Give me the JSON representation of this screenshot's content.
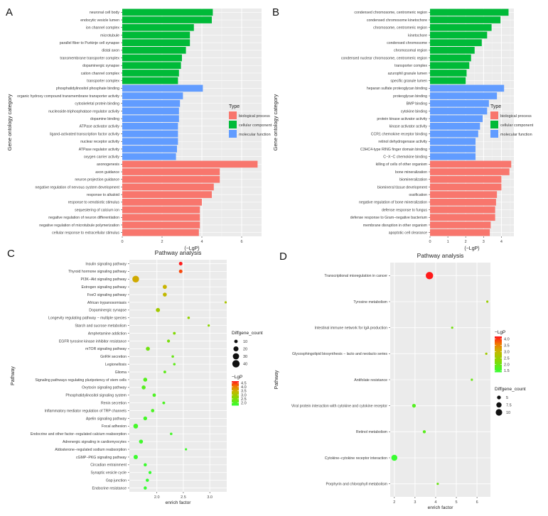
{
  "chart_data": [
    {
      "panel": "A",
      "type": "bar",
      "orientation": "horizontal",
      "xlabel": "(−LgP)",
      "ylabel": "Gene ontology category",
      "xlim": [
        0,
        7
      ],
      "xticks": [
        0,
        2,
        4,
        6
      ],
      "legend": {
        "title": "Type",
        "position": "right",
        "entries": [
          "biological process",
          "cellular component",
          "molecular function"
        ]
      },
      "colors": {
        "biological process": "#f8766d",
        "cellular component": "#00ba38",
        "molecular function": "#619cff"
      },
      "bars": [
        {
          "label": "neuronal cell body",
          "value": 4.55,
          "type": "cellular component"
        },
        {
          "label": "endocytic vesicle lumen",
          "value": 4.5,
          "type": "cellular component"
        },
        {
          "label": "ion channel complex",
          "value": 3.6,
          "type": "cellular component"
        },
        {
          "label": "microtubule",
          "value": 3.4,
          "type": "cellular component"
        },
        {
          "label": "parallel fiber to Purkinje cell synapse",
          "value": 3.4,
          "type": "cellular component"
        },
        {
          "label": "distal axon",
          "value": 3.2,
          "type": "cellular component"
        },
        {
          "label": "transmembrane transporter complex",
          "value": 3.0,
          "type": "cellular component"
        },
        {
          "label": "dopaminergic synapse",
          "value": 2.95,
          "type": "cellular component"
        },
        {
          "label": "cation channel complex",
          "value": 2.85,
          "type": "cellular component"
        },
        {
          "label": "transporter complex",
          "value": 2.8,
          "type": "cellular component"
        },
        {
          "label": "phosphatidylinositol phosphate binding",
          "value": 4.05,
          "type": "molecular function"
        },
        {
          "label": "organic hydroxy compound transmembrane transporter activity",
          "value": 3.05,
          "type": "molecular function"
        },
        {
          "label": "cytoskeletal protein binding",
          "value": 2.9,
          "type": "molecular function"
        },
        {
          "label": "nucleoside-triphosphatase regulator activity",
          "value": 2.85,
          "type": "molecular function"
        },
        {
          "label": "dopamine binding",
          "value": 2.85,
          "type": "molecular function"
        },
        {
          "label": "ATPase activator activity",
          "value": 2.8,
          "type": "molecular function"
        },
        {
          "label": "ligand-activated transcription factor activity",
          "value": 2.8,
          "type": "molecular function"
        },
        {
          "label": "nuclear receptor activity",
          "value": 2.8,
          "type": "molecular function"
        },
        {
          "label": "ATPase regulator activity",
          "value": 2.75,
          "type": "molecular function"
        },
        {
          "label": "oxygen carrier activity",
          "value": 2.7,
          "type": "molecular function"
        },
        {
          "label": "axonogenesis",
          "value": 6.8,
          "type": "biological process"
        },
        {
          "label": "axon guidance",
          "value": 4.9,
          "type": "biological process"
        },
        {
          "label": "neuron projection guidance",
          "value": 4.9,
          "type": "biological process"
        },
        {
          "label": "negative regulation of nervous system development",
          "value": 4.6,
          "type": "biological process"
        },
        {
          "label": "response to alkaloid",
          "value": 4.5,
          "type": "biological process"
        },
        {
          "label": "response to xenobiotic stimulus",
          "value": 4.0,
          "type": "biological process"
        },
        {
          "label": "sequestering of calcium ion",
          "value": 3.9,
          "type": "biological process"
        },
        {
          "label": "negative regulation of neuron differentiation",
          "value": 3.9,
          "type": "biological process"
        },
        {
          "label": "negative regulation of microtubule polymerization",
          "value": 3.9,
          "type": "biological process"
        },
        {
          "label": "cellular response to extracellular stimulus",
          "value": 3.85,
          "type": "biological process"
        }
      ]
    },
    {
      "panel": "B",
      "type": "bar",
      "orientation": "horizontal",
      "xlabel": "(−LgP)",
      "ylabel": "Gene ontology category",
      "xlim": [
        0,
        4.7
      ],
      "xticks": [
        0,
        1,
        2,
        3,
        4
      ],
      "legend": {
        "title": "Type",
        "position": "right",
        "entries": [
          "biological process",
          "cellular component",
          "molecular function"
        ]
      },
      "colors": {
        "biological process": "#f8766d",
        "cellular component": "#00ba38",
        "molecular function": "#619cff"
      },
      "bars": [
        {
          "label": "condensed chromosome, centromeric region",
          "value": 4.4,
          "type": "cellular component"
        },
        {
          "label": "condensed chromosome kinetochore",
          "value": 3.95,
          "type": "cellular component"
        },
        {
          "label": "chromosome, centromeric region",
          "value": 3.45,
          "type": "cellular component"
        },
        {
          "label": "kinetochore",
          "value": 3.2,
          "type": "cellular component"
        },
        {
          "label": "condensed chromosome",
          "value": 2.9,
          "type": "cellular component"
        },
        {
          "label": "chromosomal region",
          "value": 2.5,
          "type": "cellular component"
        },
        {
          "label": "condensed nuclear chromosome, centromeric region",
          "value": 2.3,
          "type": "cellular component"
        },
        {
          "label": "transporter complex",
          "value": 2.2,
          "type": "cellular component"
        },
        {
          "label": "azurophil granule lumen",
          "value": 2.05,
          "type": "cellular component"
        },
        {
          "label": "specific granule lumen",
          "value": 2.0,
          "type": "cellular component"
        },
        {
          "label": "heparan sulfate proteoglycan binding",
          "value": 4.15,
          "type": "molecular function"
        },
        {
          "label": "proteoglycan binding",
          "value": 3.75,
          "type": "molecular function"
        },
        {
          "label": "BMP binding",
          "value": 3.3,
          "type": "molecular function"
        },
        {
          "label": "cytokine binding",
          "value": 3.2,
          "type": "molecular function"
        },
        {
          "label": "protein kinase activator activity",
          "value": 2.95,
          "type": "molecular function"
        },
        {
          "label": "kinase activator activity",
          "value": 2.8,
          "type": "molecular function"
        },
        {
          "label": "CCR1 chemokine receptor binding",
          "value": 2.7,
          "type": "molecular function"
        },
        {
          "label": "retinol dehydrogenase activity",
          "value": 2.55,
          "type": "molecular function"
        },
        {
          "label": "C3HC4-type RING finger domain binding",
          "value": 2.55,
          "type": "molecular function"
        },
        {
          "label": "C−X−C chemokine binding",
          "value": 2.55,
          "type": "molecular function"
        },
        {
          "label": "killing of cells of other organism",
          "value": 4.55,
          "type": "biological process"
        },
        {
          "label": "bone mineralization",
          "value": 4.45,
          "type": "biological process"
        },
        {
          "label": "biomineralization",
          "value": 4.0,
          "type": "biological process"
        },
        {
          "label": "biomineral tissue development",
          "value": 4.0,
          "type": "biological process"
        },
        {
          "label": "ossification",
          "value": 3.75,
          "type": "biological process"
        },
        {
          "label": "negative regulation of bone mineralization",
          "value": 3.7,
          "type": "biological process"
        },
        {
          "label": "defense response to fungus",
          "value": 3.65,
          "type": "biological process"
        },
        {
          "label": "defense response to Gram−negative bacterium",
          "value": 3.65,
          "type": "biological process"
        },
        {
          "label": "membrane disruption in other organism",
          "value": 3.4,
          "type": "biological process"
        },
        {
          "label": "apoptotic cell clearance",
          "value": 3.35,
          "type": "biological process"
        }
      ]
    },
    {
      "panel": "C",
      "type": "scatter",
      "title": "Pathway analysis",
      "xlabel": "enrich factor",
      "ylabel": "Pathway",
      "xlim": [
        1.48,
        3.32
      ],
      "xticks": [
        2.0,
        2.5,
        3.0
      ],
      "xticklabels": [
        "2.0",
        "2.5",
        "3.0"
      ],
      "size_legend": {
        "title": "Diffgene_count",
        "values": [
          10,
          20,
          30,
          40
        ],
        "range": [
          5,
          45
        ]
      },
      "color_legend": {
        "title": "−LgP",
        "ticks": [
          2.0,
          2.5,
          3.0,
          3.5,
          4.0,
          4.5
        ],
        "range": [
          1.7,
          4.7
        ]
      },
      "points": [
        {
          "pathway": "Insulin signaling pathway",
          "x": 2.45,
          "count": 11,
          "lgp": 4.7
        },
        {
          "pathway": "Thyroid hormone signaling pathway",
          "x": 2.45,
          "count": 11,
          "lgp": 4.4
        },
        {
          "pathway": "PI3K−Akt signaling pathway",
          "x": 1.6,
          "count": 34,
          "lgp": 3.6
        },
        {
          "pathway": "Estrogen signaling pathway",
          "x": 2.15,
          "count": 14,
          "lgp": 3.5
        },
        {
          "pathway": "FoxO signaling pathway",
          "x": 2.15,
          "count": 13,
          "lgp": 3.4
        },
        {
          "pathway": "African trypanosomiasis",
          "x": 3.3,
          "count": 5,
          "lgp": 3.1
        },
        {
          "pathway": "Dopaminergic synapse",
          "x": 2.02,
          "count": 14,
          "lgp": 3.0
        },
        {
          "pathway": "Longevity regulating pathway − multiple species",
          "x": 2.6,
          "count": 6,
          "lgp": 2.8
        },
        {
          "pathway": "Starch and sucrose metabolism",
          "x": 2.98,
          "count": 5,
          "lgp": 2.7
        },
        {
          "pathway": "Amphetamine addiction",
          "x": 2.33,
          "count": 7,
          "lgp": 2.6
        },
        {
          "pathway": "EGFR tyrosine kinase inhibitor resistance",
          "x": 2.22,
          "count": 8,
          "lgp": 2.5
        },
        {
          "pathway": "mTOR signaling pathway",
          "x": 1.83,
          "count": 13,
          "lgp": 2.4
        },
        {
          "pathway": "GnRH secretion",
          "x": 2.3,
          "count": 6,
          "lgp": 2.3
        },
        {
          "pathway": "Legionellosis",
          "x": 2.33,
          "count": 6,
          "lgp": 2.2
        },
        {
          "pathway": "Glioma",
          "x": 2.15,
          "count": 7,
          "lgp": 2.2
        },
        {
          "pathway": "Signaling pathways regulating pluripotency of stem cells",
          "x": 1.78,
          "count": 13,
          "lgp": 2.1
        },
        {
          "pathway": "Oxytocin signaling pathway",
          "x": 1.75,
          "count": 13,
          "lgp": 2.1
        },
        {
          "pathway": "Phosphatidylinositol signaling system",
          "x": 1.95,
          "count": 10,
          "lgp": 2.0
        },
        {
          "pathway": "Renin secretion",
          "x": 2.13,
          "count": 7,
          "lgp": 2.0
        },
        {
          "pathway": "Inflammatory mediator regulation of TRP channels",
          "x": 1.92,
          "count": 10,
          "lgp": 2.0
        },
        {
          "pathway": "Apelin signaling pathway",
          "x": 1.78,
          "count": 12,
          "lgp": 1.9
        },
        {
          "pathway": "Focal adhesion",
          "x": 1.6,
          "count": 18,
          "lgp": 1.9
        },
        {
          "pathway": "Endocrine and other factor−regulated calcium reabsorption",
          "x": 2.27,
          "count": 6,
          "lgp": 1.9
        },
        {
          "pathway": "Adrenergic signaling in cardiomyocytes",
          "x": 1.7,
          "count": 13,
          "lgp": 1.85
        },
        {
          "pathway": "Aldosterone−regulated sodium reabsorption",
          "x": 2.55,
          "count": 5,
          "lgp": 1.85
        },
        {
          "pathway": "cGMP−PKG signaling pathway",
          "x": 1.6,
          "count": 15,
          "lgp": 1.8
        },
        {
          "pathway": "Circadian entrainment",
          "x": 1.78,
          "count": 9,
          "lgp": 1.8
        },
        {
          "pathway": "Synaptic vesicle cycle",
          "x": 1.87,
          "count": 8,
          "lgp": 1.75
        },
        {
          "pathway": "Gap junction",
          "x": 1.82,
          "count": 9,
          "lgp": 1.75
        },
        {
          "pathway": "Endocrine resistance",
          "x": 1.78,
          "count": 9,
          "lgp": 1.75
        }
      ]
    },
    {
      "panel": "D",
      "type": "scatter",
      "title": "Pathway analysis",
      "xlabel": "enrich factor",
      "ylabel": "Pathway",
      "xlim": [
        1.8,
        6.65
      ],
      "xticks": [
        2,
        3,
        4,
        5,
        6
      ],
      "xticklabels": [
        "2",
        "3",
        "4",
        "5",
        "6"
      ],
      "size_legend": {
        "title": "Diffgene_count",
        "values": [
          5.0,
          7.5,
          10.0
        ],
        "range": [
          3,
          12
        ]
      },
      "color_legend": {
        "title": "−LgP",
        "ticks": [
          1.5,
          2.0,
          2.5,
          3.0,
          3.5,
          4.0
        ],
        "range": [
          1.4,
          4.2
        ]
      },
      "points": [
        {
          "pathway": "Transcriptional misregulation in cancer",
          "x": 3.7,
          "count": 12,
          "lgp": 4.2
        },
        {
          "pathway": "Tyrosine metabolism",
          "x": 6.5,
          "count": 3,
          "lgp": 2.5
        },
        {
          "pathway": "Intestinal immune network for IgA production",
          "x": 4.8,
          "count": 3,
          "lgp": 2.1
        },
        {
          "pathway": "Glycosphingolipid biosynthesis − lacto and neolacto series",
          "x": 6.45,
          "count": 3,
          "lgp": 2.6
        },
        {
          "pathway": "Antifolate resistance",
          "x": 5.75,
          "count": 3,
          "lgp": 2.0
        },
        {
          "pathway": "Viral protein interaction with cytokine and cytokine receptor",
          "x": 2.95,
          "count": 5,
          "lgp": 1.75
        },
        {
          "pathway": "Retinol metabolism",
          "x": 3.45,
          "count": 4,
          "lgp": 1.8
        },
        {
          "pathway": "Cytokine−cytokine receptor interaction",
          "x": 2.0,
          "count": 9,
          "lgp": 1.45
        },
        {
          "pathway": "Porphyrin and chlorophyll metabolism",
          "x": 4.1,
          "count": 3,
          "lgp": 2.0
        }
      ]
    }
  ]
}
